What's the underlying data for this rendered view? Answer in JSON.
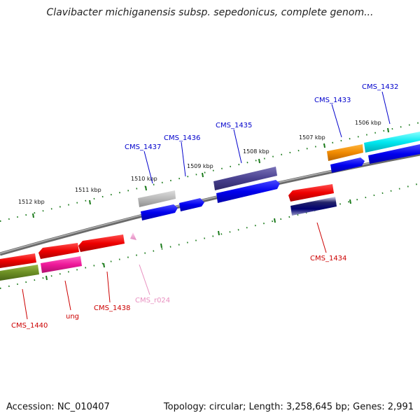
{
  "title": "Clavibacter michiganensis subsp. sepedonicus, complete genom...",
  "footer": {
    "accession": "Accession: NC_010407",
    "summary": "Topology: circular; Length: 3,258,645 bp; Genes: 2,991"
  },
  "ticks": [
    "1506 kbp",
    "1507 kbp",
    "1508 kbp",
    "1509 kbp",
    "1510 kbp",
    "1511 kbp",
    "1512 kbp"
  ],
  "gene_labels": {
    "top": [
      "CMS_1432",
      "CMS_1433",
      "CMS_1435",
      "CMS_1436",
      "CMS_1437"
    ],
    "bottom": [
      "CMS_1434",
      "CMS_r024",
      "CMS_1438",
      "ung",
      "CMS_1440"
    ]
  },
  "colors": {
    "backbone": "#8a8a8a",
    "tick": "#1a7a1a",
    "label_top": "#0000cc",
    "label_bottom": "#cc0000",
    "label_rna": "#e890c0"
  }
}
